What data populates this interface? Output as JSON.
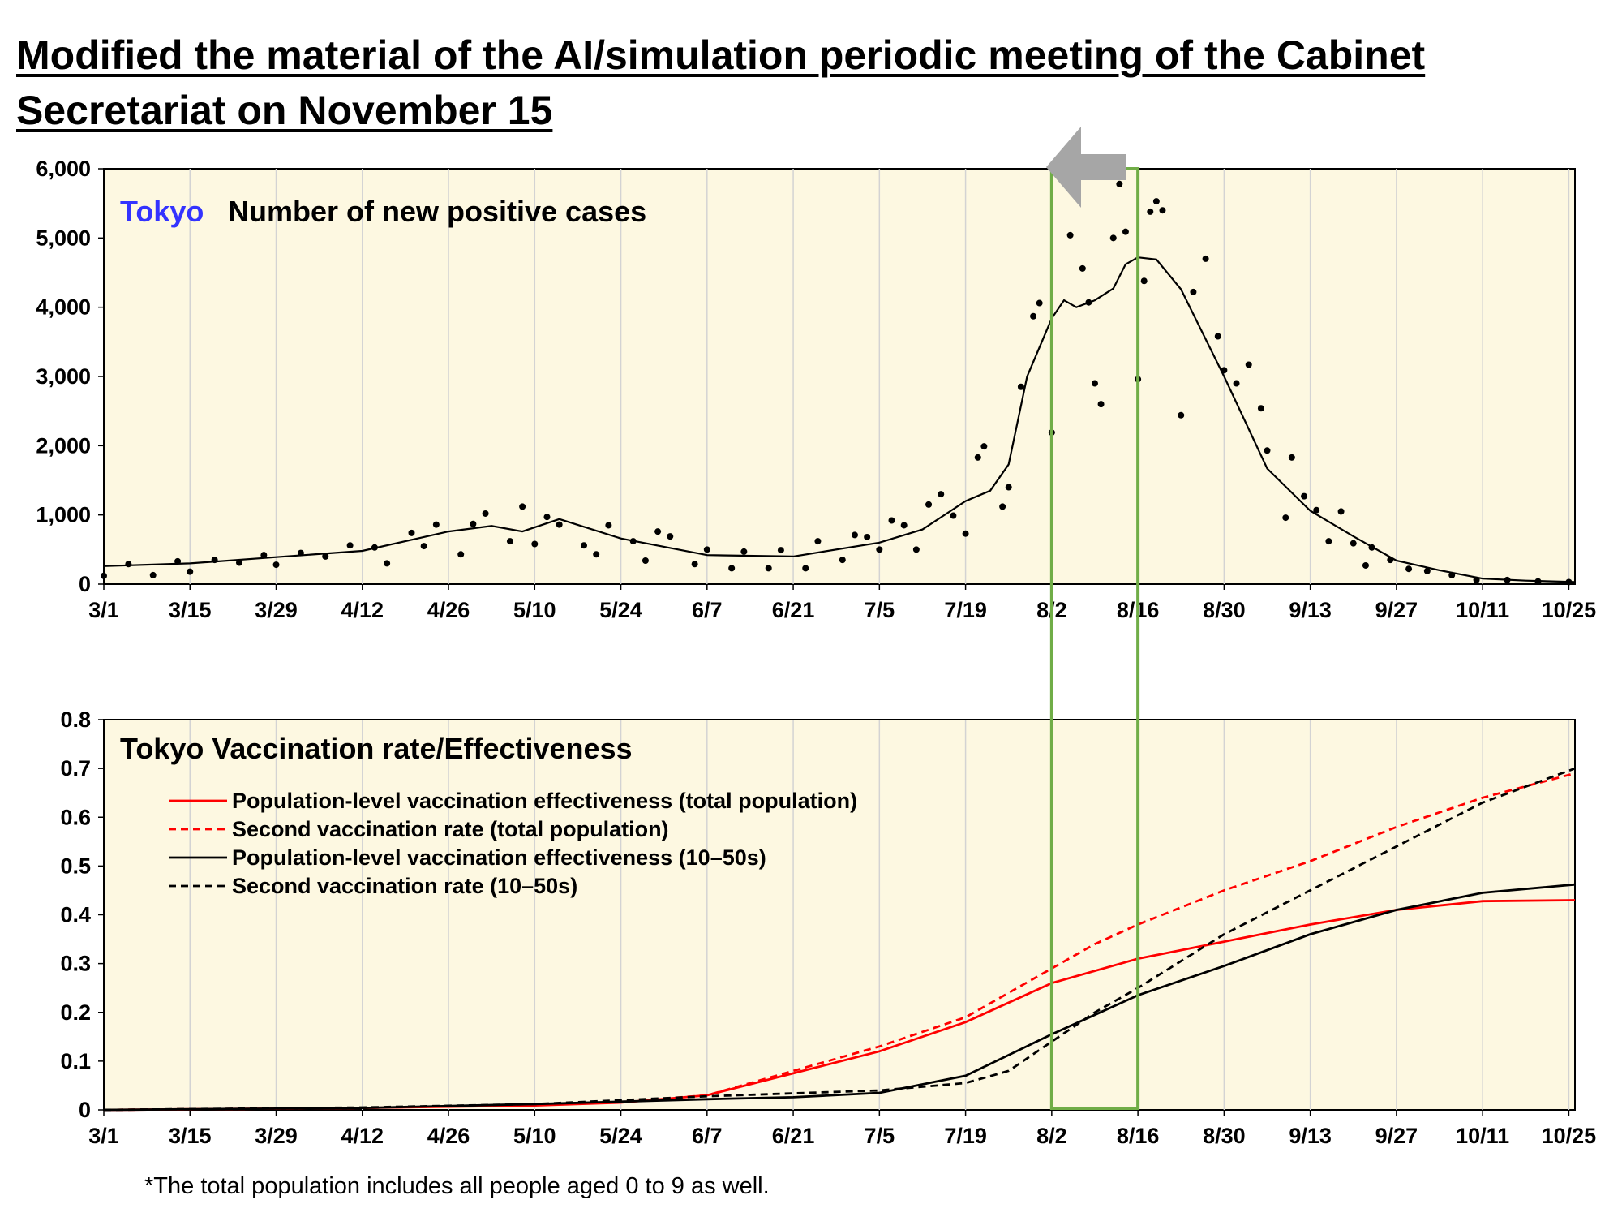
{
  "title": "Modified the material of the AI/simulation periodic meeting of the Cabinet Secretariat on November 15",
  "footnote": "*The total population includes all people aged 0 to 9 as well.",
  "colors": {
    "plot_background": "#fdf8e1",
    "highlight_box": "#70ad47",
    "arrow": "#a6a6a6",
    "region_label": "#3333ff",
    "red_series": "#ff0000",
    "black_series": "#000000"
  },
  "chart_data": [
    {
      "type": "scatter",
      "title_region": "Tokyo",
      "title": "Number of new positive cases",
      "x_tick_labels": [
        "3/1",
        "3/15",
        "3/29",
        "4/12",
        "4/26",
        "5/10",
        "5/24",
        "6/7",
        "6/21",
        "7/5",
        "7/19",
        "8/2",
        "8/16",
        "8/30",
        "9/13",
        "9/27",
        "10/11",
        "10/25"
      ],
      "x_range": [
        "2021-03-01",
        "2021-10-26"
      ],
      "ylim": [
        0,
        6000
      ],
      "y_ticks": [
        0,
        1000,
        2000,
        3000,
        4000,
        5000,
        6000
      ],
      "y_tick_labels": [
        "0",
        "1,000",
        "2,000",
        "3,000",
        "4,000",
        "5,000",
        "6,000"
      ],
      "grid": "vertical",
      "series": [
        {
          "style": "dots",
          "points": [
            [
              "2021-03-01",
              120
            ],
            [
              "2021-03-05",
              290
            ],
            [
              "2021-03-09",
              130
            ],
            [
              "2021-03-13",
              330
            ],
            [
              "2021-03-15",
              180
            ],
            [
              "2021-03-19",
              350
            ],
            [
              "2021-03-23",
              310
            ],
            [
              "2021-03-27",
              420
            ],
            [
              "2021-03-29",
              280
            ],
            [
              "2021-04-02",
              450
            ],
            [
              "2021-04-06",
              400
            ],
            [
              "2021-04-10",
              560
            ],
            [
              "2021-04-14",
              530
            ],
            [
              "2021-04-16",
              300
            ],
            [
              "2021-04-20",
              740
            ],
            [
              "2021-04-22",
              550
            ],
            [
              "2021-04-24",
              860
            ],
            [
              "2021-04-28",
              430
            ],
            [
              "2021-04-30",
              870
            ],
            [
              "2021-05-02",
              1020
            ],
            [
              "2021-05-06",
              620
            ],
            [
              "2021-05-08",
              1120
            ],
            [
              "2021-05-10",
              580
            ],
            [
              "2021-05-12",
              970
            ],
            [
              "2021-05-14",
              860
            ],
            [
              "2021-05-18",
              560
            ],
            [
              "2021-05-20",
              430
            ],
            [
              "2021-05-22",
              850
            ],
            [
              "2021-05-26",
              620
            ],
            [
              "2021-05-28",
              340
            ],
            [
              "2021-05-30",
              760
            ],
            [
              "2021-06-01",
              690
            ],
            [
              "2021-06-05",
              290
            ],
            [
              "2021-06-07",
              500
            ],
            [
              "2021-06-11",
              230
            ],
            [
              "2021-06-13",
              470
            ],
            [
              "2021-06-17",
              230
            ],
            [
              "2021-06-19",
              490
            ],
            [
              "2021-06-23",
              230
            ],
            [
              "2021-06-25",
              620
            ],
            [
              "2021-06-29",
              350
            ],
            [
              "2021-07-01",
              710
            ],
            [
              "2021-07-03",
              680
            ],
            [
              "2021-07-05",
              500
            ],
            [
              "2021-07-07",
              920
            ],
            [
              "2021-07-09",
              850
            ],
            [
              "2021-07-11",
              500
            ],
            [
              "2021-07-13",
              1150
            ],
            [
              "2021-07-15",
              1300
            ],
            [
              "2021-07-17",
              990
            ],
            [
              "2021-07-19",
              730
            ],
            [
              "2021-07-21",
              1830
            ],
            [
              "2021-07-22",
              1990
            ],
            [
              "2021-07-25",
              1120
            ],
            [
              "2021-07-26",
              1400
            ],
            [
              "2021-07-28",
              2850
            ],
            [
              "2021-07-30",
              3870
            ],
            [
              "2021-07-31",
              4060
            ],
            [
              "2021-08-02",
              2190
            ],
            [
              "2021-08-05",
              5040
            ],
            [
              "2021-08-07",
              4560
            ],
            [
              "2021-08-08",
              4070
            ],
            [
              "2021-08-09",
              2900
            ],
            [
              "2021-08-10",
              2600
            ],
            [
              "2021-08-12",
              5000
            ],
            [
              "2021-08-13",
              5780
            ],
            [
              "2021-08-14",
              5090
            ],
            [
              "2021-08-16",
              2960
            ],
            [
              "2021-08-17",
              4380
            ],
            [
              "2021-08-18",
              5380
            ],
            [
              "2021-08-19",
              5530
            ],
            [
              "2021-08-20",
              5400
            ],
            [
              "2021-08-23",
              2440
            ],
            [
              "2021-08-25",
              4220
            ],
            [
              "2021-08-27",
              4700
            ],
            [
              "2021-08-29",
              3580
            ],
            [
              "2021-08-30",
              3090
            ],
            [
              "2021-09-01",
              2900
            ],
            [
              "2021-09-03",
              3170
            ],
            [
              "2021-09-05",
              2540
            ],
            [
              "2021-09-06",
              1930
            ],
            [
              "2021-09-09",
              960
            ],
            [
              "2021-09-10",
              1830
            ],
            [
              "2021-09-12",
              1270
            ],
            [
              "2021-09-14",
              1070
            ],
            [
              "2021-09-16",
              620
            ],
            [
              "2021-09-18",
              1050
            ],
            [
              "2021-09-20",
              590
            ],
            [
              "2021-09-22",
              270
            ],
            [
              "2021-09-23",
              530
            ],
            [
              "2021-09-26",
              350
            ],
            [
              "2021-09-29",
              220
            ],
            [
              "2021-10-02",
              190
            ],
            [
              "2021-10-06",
              130
            ],
            [
              "2021-10-10",
              60
            ],
            [
              "2021-10-15",
              60
            ],
            [
              "2021-10-20",
              40
            ],
            [
              "2021-10-25",
              30
            ]
          ]
        },
        {
          "style": "line",
          "points": [
            [
              "2021-03-01",
              260
            ],
            [
              "2021-03-15",
              300
            ],
            [
              "2021-03-29",
              390
            ],
            [
              "2021-04-12",
              480
            ],
            [
              "2021-04-26",
              760
            ],
            [
              "2021-05-03",
              840
            ],
            [
              "2021-05-08",
              760
            ],
            [
              "2021-05-14",
              940
            ],
            [
              "2021-05-24",
              660
            ],
            [
              "2021-06-07",
              420
            ],
            [
              "2021-06-21",
              400
            ],
            [
              "2021-07-05",
              600
            ],
            [
              "2021-07-12",
              790
            ],
            [
              "2021-07-19",
              1200
            ],
            [
              "2021-07-23",
              1350
            ],
            [
              "2021-07-26",
              1730
            ],
            [
              "2021-07-29",
              3000
            ],
            [
              "2021-08-02",
              3840
            ],
            [
              "2021-08-04",
              4100
            ],
            [
              "2021-08-06",
              4000
            ],
            [
              "2021-08-09",
              4100
            ],
            [
              "2021-08-12",
              4270
            ],
            [
              "2021-08-14",
              4620
            ],
            [
              "2021-08-16",
              4720
            ],
            [
              "2021-08-19",
              4690
            ],
            [
              "2021-08-23",
              4260
            ],
            [
              "2021-08-30",
              3000
            ],
            [
              "2021-09-06",
              1670
            ],
            [
              "2021-09-13",
              1060
            ],
            [
              "2021-09-20",
              690
            ],
            [
              "2021-09-27",
              340
            ],
            [
              "2021-10-04",
              200
            ],
            [
              "2021-10-11",
              80
            ],
            [
              "2021-10-18",
              50
            ],
            [
              "2021-10-26",
              30
            ]
          ]
        }
      ]
    },
    {
      "type": "line",
      "title": "Tokyo  Vaccination rate/Effectiveness",
      "x_tick_labels": [
        "3/1",
        "3/15",
        "3/29",
        "4/12",
        "4/26",
        "5/10",
        "5/24",
        "6/7",
        "6/21",
        "7/5",
        "7/19",
        "8/2",
        "8/16",
        "8/30",
        "9/13",
        "9/27",
        "10/11",
        "10/25"
      ],
      "x_range": [
        "2021-03-01",
        "2021-10-26"
      ],
      "ylim": [
        0,
        0.8
      ],
      "y_ticks": [
        0,
        0.1,
        0.2,
        0.3,
        0.4,
        0.5,
        0.6,
        0.7,
        0.8
      ],
      "y_tick_labels": [
        "0",
        "0.1",
        "0.2",
        "0.3",
        "0.4",
        "0.5",
        "0.6",
        "0.7",
        "0.8"
      ],
      "grid": "vertical",
      "legend_position": "top-left",
      "series": [
        {
          "name": "Population-level vaccination effectiveness (total population)",
          "color": "red",
          "dash": "solid",
          "points": [
            [
              "2021-03-01",
              0
            ],
            [
              "2021-04-12",
              0.004
            ],
            [
              "2021-05-10",
              0.009
            ],
            [
              "2021-05-24",
              0.015
            ],
            [
              "2021-06-07",
              0.03
            ],
            [
              "2021-06-21",
              0.075
            ],
            [
              "2021-07-05",
              0.12
            ],
            [
              "2021-07-19",
              0.18
            ],
            [
              "2021-08-02",
              0.26
            ],
            [
              "2021-08-16",
              0.31
            ],
            [
              "2021-08-30",
              0.345
            ],
            [
              "2021-09-13",
              0.38
            ],
            [
              "2021-09-27",
              0.41
            ],
            [
              "2021-10-11",
              0.428
            ],
            [
              "2021-10-26",
              0.43
            ]
          ]
        },
        {
          "name": "Second vaccination rate (total population)",
          "color": "red",
          "dash": "dashed",
          "points": [
            [
              "2021-03-01",
              0
            ],
            [
              "2021-04-12",
              0.004
            ],
            [
              "2021-05-10",
              0.01
            ],
            [
              "2021-05-24",
              0.017
            ],
            [
              "2021-06-07",
              0.03
            ],
            [
              "2021-06-21",
              0.08
            ],
            [
              "2021-07-05",
              0.13
            ],
            [
              "2021-07-19",
              0.19
            ],
            [
              "2021-08-02",
              0.29
            ],
            [
              "2021-08-09",
              0.34
            ],
            [
              "2021-08-16",
              0.38
            ],
            [
              "2021-08-30",
              0.45
            ],
            [
              "2021-09-13",
              0.51
            ],
            [
              "2021-09-27",
              0.58
            ],
            [
              "2021-10-11",
              0.64
            ],
            [
              "2021-10-26",
              0.69
            ]
          ]
        },
        {
          "name": "Population-level vaccination effectiveness (10–50s)",
          "color": "black",
          "dash": "solid",
          "points": [
            [
              "2021-03-01",
              0
            ],
            [
              "2021-04-12",
              0.004
            ],
            [
              "2021-05-10",
              0.012
            ],
            [
              "2021-05-24",
              0.017
            ],
            [
              "2021-06-07",
              0.022
            ],
            [
              "2021-06-21",
              0.026
            ],
            [
              "2021-07-05",
              0.035
            ],
            [
              "2021-07-19",
              0.07
            ],
            [
              "2021-08-02",
              0.155
            ],
            [
              "2021-08-09",
              0.195
            ],
            [
              "2021-08-16",
              0.235
            ],
            [
              "2021-08-30",
              0.295
            ],
            [
              "2021-09-13",
              0.36
            ],
            [
              "2021-09-27",
              0.41
            ],
            [
              "2021-10-11",
              0.445
            ],
            [
              "2021-10-26",
              0.462
            ]
          ]
        },
        {
          "name": "Second vaccination rate (10–50s)",
          "color": "black",
          "dash": "dashed",
          "points": [
            [
              "2021-03-01",
              0
            ],
            [
              "2021-04-12",
              0.005
            ],
            [
              "2021-05-10",
              0.012
            ],
            [
              "2021-05-24",
              0.02
            ],
            [
              "2021-06-07",
              0.028
            ],
            [
              "2021-06-21",
              0.034
            ],
            [
              "2021-07-05",
              0.04
            ],
            [
              "2021-07-19",
              0.055
            ],
            [
              "2021-07-26",
              0.08
            ],
            [
              "2021-08-02",
              0.14
            ],
            [
              "2021-08-09",
              0.2
            ],
            [
              "2021-08-16",
              0.25
            ],
            [
              "2021-08-30",
              0.36
            ],
            [
              "2021-09-13",
              0.45
            ],
            [
              "2021-09-27",
              0.54
            ],
            [
              "2021-10-11",
              0.63
            ],
            [
              "2021-10-26",
              0.7
            ]
          ]
        }
      ]
    }
  ]
}
